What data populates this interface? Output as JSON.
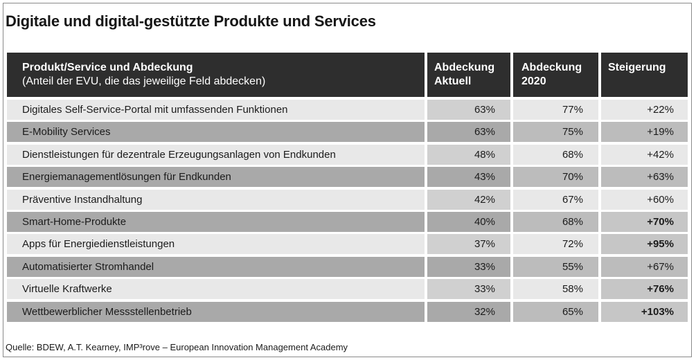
{
  "title": "Digitale und digital-gestützte Produkte und Services",
  "source": "Quelle: BDEW, A.T. Kearney, IMP³rove – European Innovation Management Academy",
  "chart_data": {
    "type": "table",
    "title": "Digitale und digital-gestützte Produkte und Services",
    "columns": [
      {
        "line1": "Produkt/Service und Abdeckung",
        "line2": "(Anteil der EVU, die das jeweilige Feld abdecken)"
      },
      {
        "line1": "Abdeckung",
        "line2": "Aktuell"
      },
      {
        "line1": "Abdeckung",
        "line2": "2020"
      },
      {
        "line1": "Steigerung",
        "line2": ""
      }
    ],
    "rows": [
      {
        "product": "Digitales Self-Service-Portal mit umfassenden Funktionen",
        "aktuell": "63%",
        "y2020": "77%",
        "steigerung": "+22%",
        "highlight": false
      },
      {
        "product": "E-Mobility Services",
        "aktuell": "63%",
        "y2020": "75%",
        "steigerung": "+19%",
        "highlight": false
      },
      {
        "product": "Dienstleistungen für dezentrale Erzeugungsanlagen von Endkunden",
        "aktuell": "48%",
        "y2020": "68%",
        "steigerung": "+42%",
        "highlight": false
      },
      {
        "product": "Energiemanagementlösungen für Endkunden",
        "aktuell": "43%",
        "y2020": "70%",
        "steigerung": "+63%",
        "highlight": false
      },
      {
        "product": "Präventive Instandhaltung",
        "aktuell": "42%",
        "y2020": "67%",
        "steigerung": "+60%",
        "highlight": false
      },
      {
        "product": "Smart-Home-Produkte",
        "aktuell": "40%",
        "y2020": "68%",
        "steigerung": "+70%",
        "highlight": true
      },
      {
        "product": "Apps für Energiedienstleistungen",
        "aktuell": "37%",
        "y2020": "72%",
        "steigerung": "+95%",
        "highlight": true
      },
      {
        "product": "Automatisierter Stromhandel",
        "aktuell": "33%",
        "y2020": "55%",
        "steigerung": "+67%",
        "highlight": false
      },
      {
        "product": "Virtuelle Kraftwerke",
        "aktuell": "33%",
        "y2020": "58%",
        "steigerung": "+76%",
        "highlight": true
      },
      {
        "product": "Wettbewerblicher Messstellenbetrieb",
        "aktuell": "32%",
        "y2020": "65%",
        "steigerung": "+103%",
        "highlight": true
      }
    ]
  }
}
